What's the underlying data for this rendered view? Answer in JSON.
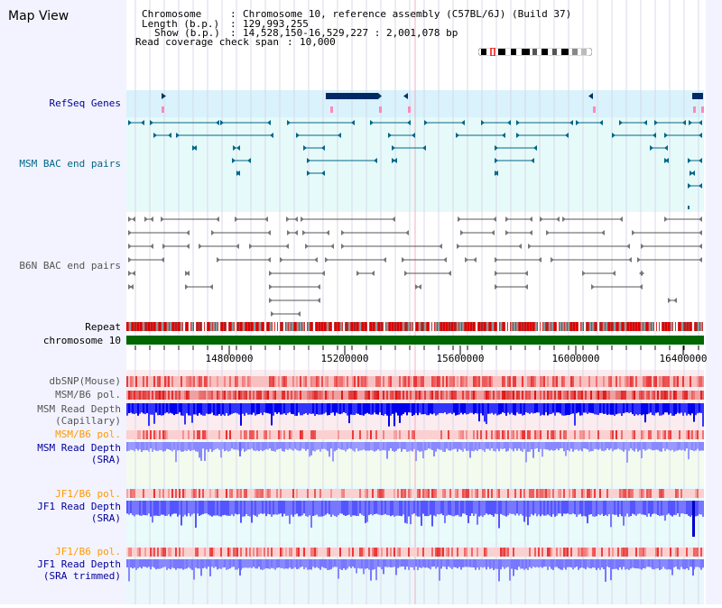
{
  "header": {
    "title": "Map View",
    "chromosome_label": "Chromosome",
    "chromosome_value": "Chromosome 10, reference assembly (C57BL/6J) (Build 37)",
    "length_label": "Length (b.p.)",
    "length_value": "129,993,255",
    "show_label": "Show (b.p.)",
    "show_value": "14,528,150-16,529,227 : 2,001,078 bp",
    "coverage_label": "Read coverage check span",
    "coverage_value": "10,000"
  },
  "tracks": {
    "refseq": "RefSeq Genes",
    "msm_bac": "MSM BAC end pairs",
    "b6n_bac": "B6N BAC end pairs",
    "repeat": "Repeat",
    "chromosome": "chromosome 10",
    "dbsnp": "dbSNP(Mouse)",
    "msm_b6_pol": "MSM/B6 pol.",
    "msm_depth_cap_1": "MSM Read Depth",
    "msm_depth_cap_2": "(Capillary)",
    "msm_b6_pol2": "MSM/B6 pol.",
    "msm_depth_sra_1": "MSM Read Depth",
    "msm_depth_sra_2": "(SRA)",
    "jf1_b6_pol": "JF1/B6 pol.",
    "jf1_depth_sra_1": "JF1 Read Depth",
    "jf1_depth_sra_2": "(SRA)",
    "jf1_b6_pol2": "JF1/B6 pol.",
    "jf1_depth_trim_1": "JF1 Read Depth",
    "jf1_depth_trim_2": "(SRA trimmed)"
  },
  "axis": {
    "ticks": [
      "14800000",
      "15200000",
      "15600000",
      "16000000",
      "16400000"
    ]
  },
  "colors": {
    "refseq_label": "#000099",
    "msm_bac_label": "#006688",
    "b6n_bac_label": "#555555",
    "pol_label_orange": "#ff9900",
    "depth_label_blue": "#000099",
    "chromosome_bar": "#006600",
    "repeat_red": "#dd0000",
    "depth_blue": "#0000ff"
  }
}
